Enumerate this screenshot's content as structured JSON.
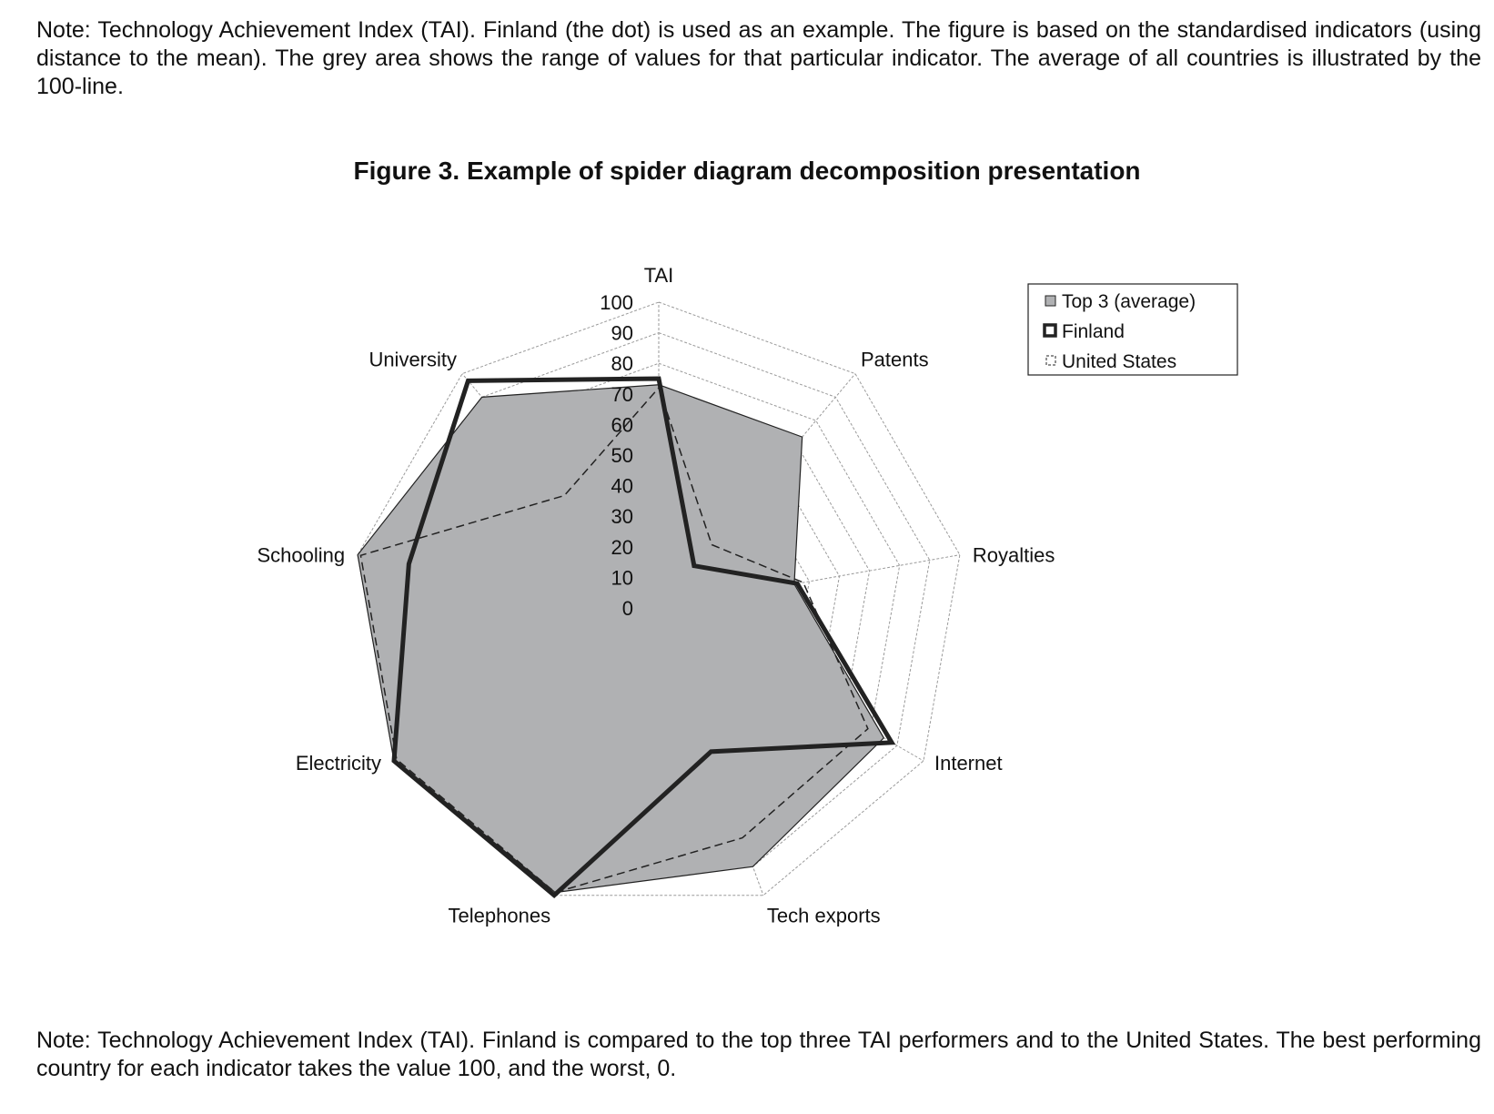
{
  "notes": {
    "top": "Note: Technology Achievement Index (TAI). Finland (the dot) is used as an example. The figure is based on the standardised indicators (using distance to the mean). The grey area shows the range of values for that particular indicator. The average of all countries is illustrated by the 100-line.",
    "bottom": "Note: Technology Achievement Index (TAI). Finland is compared to the top three TAI performers and to the United States. The best performing country for each indicator takes the value 100, and the worst, 0."
  },
  "figure_title": "Figure 3.  Example of spider diagram decomposition presentation",
  "chart_data": {
    "type": "radar",
    "title": "Figure 3.  Example of spider diagram decomposition presentation",
    "categories": [
      "TAI",
      "Patents",
      "Royalties",
      "Internet",
      "Tech exports",
      "Telephones",
      "Electricity",
      "Schooling",
      "University"
    ],
    "rlim": [
      0,
      100
    ],
    "ticks": [
      0,
      10,
      20,
      30,
      40,
      50,
      60,
      70,
      80,
      90,
      100
    ],
    "grid": true,
    "legend_position": "top-right",
    "series": [
      {
        "name": "Top 3 (average)",
        "values": [
          73,
          73,
          45,
          85,
          90,
          99,
          100,
          100,
          90
        ],
        "style": "filled",
        "color": "#b0b1b3"
      },
      {
        "name": "Finland",
        "values": [
          75,
          18,
          46,
          88,
          50,
          100,
          100,
          83,
          97
        ],
        "style": "thick-line",
        "color": "#222222"
      },
      {
        "name": "United States",
        "values": [
          72,
          27,
          48,
          79,
          80,
          99,
          99,
          99,
          48
        ],
        "style": "dashed-line",
        "color": "#222222"
      }
    ]
  }
}
